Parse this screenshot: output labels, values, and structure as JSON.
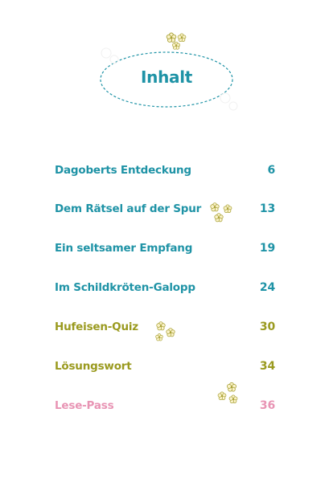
{
  "title": "Inhalt",
  "colors": {
    "teal": "#1f93a6",
    "olive": "#9a9a1f",
    "pink": "#e894b4",
    "flower_fill": "#fbf3c9",
    "flower_stroke": "#a9a23a"
  },
  "toc": [
    {
      "title": "Dagoberts Entdeckung",
      "page": "6",
      "color": "#1f93a6"
    },
    {
      "title": "Dem Rätsel auf der Spur",
      "page": "13",
      "color": "#1f93a6"
    },
    {
      "title": "Ein seltsamer Empfang",
      "page": "19",
      "color": "#1f93a6"
    },
    {
      "title": "Im Schildkröten-Galopp",
      "page": "24",
      "color": "#1f93a6"
    },
    {
      "title": "Hufeisen-Quiz",
      "page": "30",
      "color": "#9a9a1f"
    },
    {
      "title": "Lösungswort",
      "page": "34",
      "color": "#9a9a1f"
    },
    {
      "title": "Lese-Pass",
      "page": "36",
      "color": "#e894b4"
    }
  ],
  "decorations": [
    "flower-cluster-icon",
    "flower-cluster-icon",
    "flower-cluster-icon",
    "flower-cluster-icon"
  ]
}
